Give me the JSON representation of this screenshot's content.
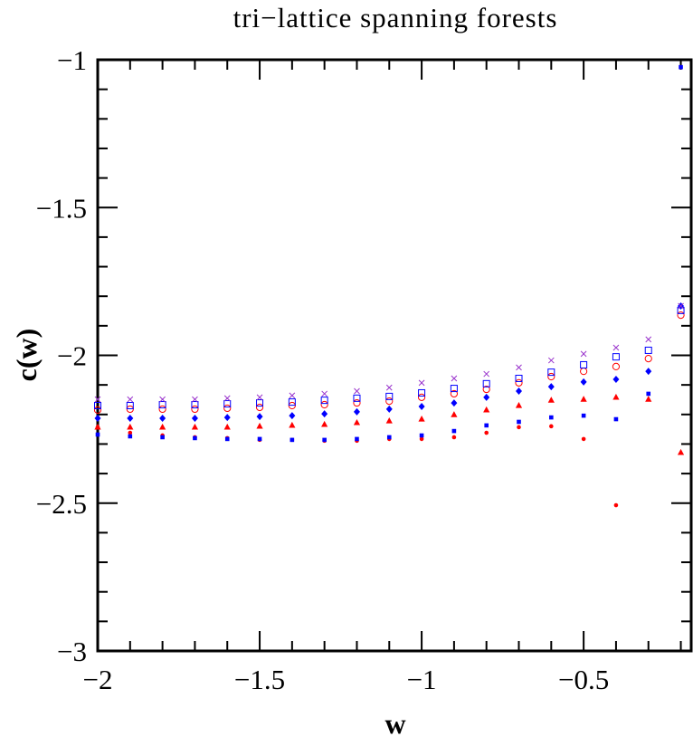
{
  "chart_data": {
    "type": "scatter",
    "title": "tri−lattice spanning forests",
    "x_label": "w",
    "y_label": "c(w)",
    "xlim": [
      -2,
      -0.168
    ],
    "ylim": [
      -3,
      -1
    ],
    "xticks": [
      {
        "value": -2,
        "label": "−2"
      },
      {
        "value": -1.5,
        "label": "−1.5"
      },
      {
        "value": -1,
        "label": "−1"
      },
      {
        "value": -0.5,
        "label": "−0.5"
      }
    ],
    "yticks": [
      {
        "value": -3,
        "label": "−3"
      },
      {
        "value": -2.5,
        "label": "−2.5"
      },
      {
        "value": -2,
        "label": "−2"
      },
      {
        "value": -1.5,
        "label": "−1.5"
      },
      {
        "value": -1,
        "label": "−1"
      }
    ],
    "xminorticks": [
      -1.9,
      -1.8,
      -1.7,
      -1.6,
      -1.4,
      -1.3,
      -1.2,
      -1.1,
      -0.9,
      -0.8,
      -0.7,
      -0.6,
      -0.4,
      -0.3,
      -0.2
    ],
    "yminorticks": [
      -2.9,
      -2.8,
      -2.7,
      -2.6,
      -2.4,
      -2.3,
      -2.2,
      -2.1,
      -1.9,
      -1.8,
      -1.7,
      -1.6,
      -1.4,
      -1.3,
      -1.2,
      -1.1
    ],
    "x": [
      -2,
      -1.9,
      -1.8,
      -1.7,
      -1.6,
      -1.5,
      -1.4,
      -1.3,
      -1.2,
      -1.1,
      -1,
      -0.9,
      -0.8,
      -0.7,
      -0.6,
      -0.5,
      -0.4,
      -0.3,
      -0.2
    ],
    "series": [
      {
        "color": "#ff0000",
        "marker": "dot",
        "values": [
          -2.243,
          -2.262,
          -2.271,
          -2.277,
          -2.28,
          -2.286,
          -2.286,
          -2.289,
          -2.289,
          -2.283,
          -2.283,
          -2.277,
          -2.262,
          -2.243,
          -2.24,
          -2.283,
          -2.507,
          null,
          null
        ]
      },
      {
        "color": "#0000ff",
        "marker": "small-square",
        "values": [
          -2.268,
          -2.274,
          -2.277,
          -2.28,
          -2.283,
          -2.283,
          -2.286,
          -2.286,
          -2.283,
          -2.277,
          -2.271,
          -2.256,
          -2.237,
          -2.225,
          -2.21,
          -2.204,
          -2.216,
          -2.13,
          -1.025
        ]
      },
      {
        "color": "#ff0000",
        "marker": "triangle",
        "values": [
          -2.243,
          -2.243,
          -2.243,
          -2.243,
          -2.243,
          -2.24,
          -2.237,
          -2.234,
          -2.228,
          -2.222,
          -2.216,
          -2.201,
          -2.185,
          -2.17,
          -2.152,
          -2.149,
          -2.142,
          -2.149,
          -2.329
        ]
      },
      {
        "color": "#0000ff",
        "marker": "diamond",
        "values": [
          -2.213,
          -2.213,
          -2.213,
          -2.213,
          -2.21,
          -2.207,
          -2.204,
          -2.198,
          -2.191,
          -2.182,
          -2.173,
          -2.161,
          -2.142,
          -2.121,
          -2.106,
          -2.09,
          -2.081,
          -2.054,
          -1.833
        ]
      },
      {
        "color": "#ff0000",
        "marker": "open-circle",
        "values": [
          -2.185,
          -2.182,
          -2.182,
          -2.182,
          -2.179,
          -2.176,
          -2.17,
          -2.167,
          -2.161,
          -2.155,
          -2.142,
          -2.13,
          -2.115,
          -2.093,
          -2.072,
          -2.054,
          -2.038,
          -2.011,
          -1.864
        ]
      },
      {
        "color": "#0000ff",
        "marker": "open-square",
        "values": [
          -2.17,
          -2.17,
          -2.167,
          -2.167,
          -2.164,
          -2.161,
          -2.158,
          -2.152,
          -2.145,
          -2.139,
          -2.127,
          -2.112,
          -2.096,
          -2.078,
          -2.057,
          -2.032,
          -2.005,
          -1.983,
          -1.848
        ]
      },
      {
        "color": "#9933cc",
        "marker": "cross",
        "values": [
          -2.149,
          -2.149,
          -2.149,
          -2.149,
          -2.145,
          -2.142,
          -2.136,
          -2.13,
          -2.121,
          -2.109,
          -2.093,
          -2.078,
          -2.063,
          -2.041,
          -2.017,
          -1.995,
          -1.974,
          -1.946,
          -1.833
        ]
      }
    ]
  }
}
